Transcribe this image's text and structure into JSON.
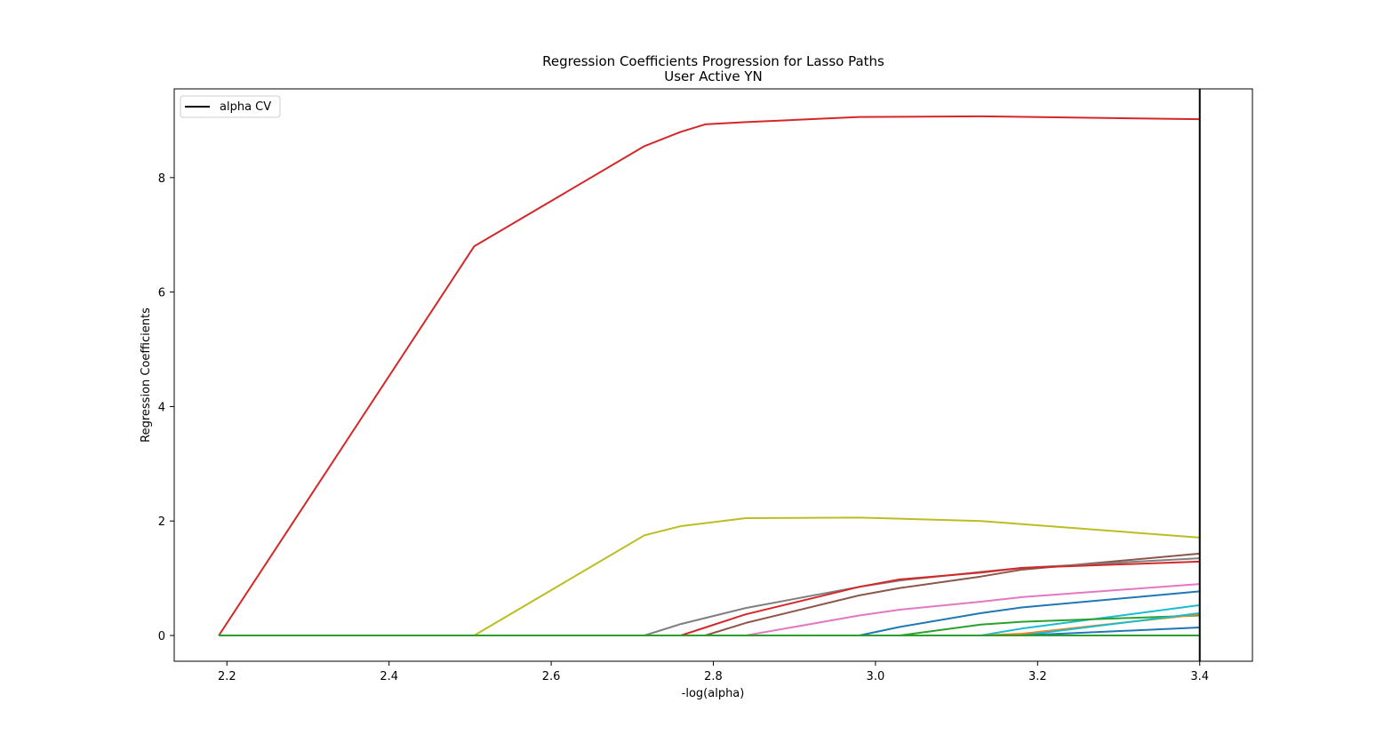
{
  "chart_data": {
    "type": "line",
    "title": "Regression Coefficients Progression for Lasso Paths",
    "subtitle": "User Active YN",
    "xlabel": "-log(alpha)",
    "ylabel": "Regression Coefficients",
    "xlim": [
      2.135,
      3.465
    ],
    "ylim": [
      -0.45,
      9.55
    ],
    "xticks": [
      2.2,
      2.4,
      2.6,
      2.8,
      3.0,
      3.2,
      3.4
    ],
    "yticks": [
      0,
      2,
      4,
      6,
      8
    ],
    "legend": {
      "placement": "upper-left",
      "entries": [
        {
          "label": "alpha CV",
          "color": "#000000"
        }
      ]
    },
    "vline": {
      "x": 3.4,
      "color": "#000000"
    },
    "grid": false,
    "series": [
      {
        "color": "#d62728",
        "points": [
          [
            2.19,
            0
          ],
          [
            2.505,
            6.8
          ],
          [
            2.715,
            8.55
          ],
          [
            2.76,
            8.8
          ],
          [
            2.79,
            8.93
          ],
          [
            2.84,
            8.97
          ],
          [
            2.98,
            9.06
          ],
          [
            3.13,
            9.07
          ],
          [
            3.4,
            9.02
          ]
        ]
      },
      {
        "color": "#bcbd22",
        "points": [
          [
            2.19,
            0
          ],
          [
            2.505,
            0
          ],
          [
            2.715,
            1.75
          ],
          [
            2.76,
            1.91
          ],
          [
            2.84,
            2.05
          ],
          [
            2.98,
            2.06
          ],
          [
            3.13,
            2.0
          ],
          [
            3.4,
            1.71
          ]
        ]
      },
      {
        "color": "#8c564b",
        "points": [
          [
            2.19,
            0
          ],
          [
            2.79,
            0
          ],
          [
            2.84,
            0.22
          ],
          [
            2.98,
            0.7
          ],
          [
            3.03,
            0.83
          ],
          [
            3.13,
            1.03
          ],
          [
            3.18,
            1.15
          ],
          [
            3.4,
            1.43
          ]
        ]
      },
      {
        "color": "#7f7f7f",
        "points": [
          [
            2.19,
            0
          ],
          [
            2.715,
            0
          ],
          [
            2.76,
            0.2
          ],
          [
            2.84,
            0.48
          ],
          [
            2.98,
            0.85
          ],
          [
            3.03,
            0.96
          ],
          [
            3.13,
            1.11
          ],
          [
            3.18,
            1.18
          ],
          [
            3.4,
            1.35
          ]
        ]
      },
      {
        "color": "#d62728",
        "points": [
          [
            2.19,
            0
          ],
          [
            2.76,
            0
          ],
          [
            2.84,
            0.37
          ],
          [
            2.98,
            0.85
          ],
          [
            3.03,
            0.98
          ],
          [
            3.13,
            1.1
          ],
          [
            3.18,
            1.18
          ],
          [
            3.4,
            1.29
          ]
        ]
      },
      {
        "color": "#e377c2",
        "points": [
          [
            2.19,
            0
          ],
          [
            2.84,
            0
          ],
          [
            2.98,
            0.35
          ],
          [
            3.03,
            0.45
          ],
          [
            3.13,
            0.59
          ],
          [
            3.18,
            0.67
          ],
          [
            3.4,
            0.9
          ]
        ]
      },
      {
        "color": "#1f77b4",
        "points": [
          [
            2.19,
            0
          ],
          [
            2.98,
            0
          ],
          [
            3.03,
            0.15
          ],
          [
            3.13,
            0.39
          ],
          [
            3.18,
            0.49
          ],
          [
            3.4,
            0.77
          ]
        ]
      },
      {
        "color": "#17becf",
        "points": [
          [
            2.19,
            0
          ],
          [
            3.13,
            0
          ],
          [
            3.18,
            0.12
          ],
          [
            3.4,
            0.53
          ]
        ]
      },
      {
        "color": "#2ca02c",
        "points": [
          [
            2.19,
            0
          ],
          [
            3.03,
            0
          ],
          [
            3.13,
            0.19
          ],
          [
            3.18,
            0.24
          ],
          [
            3.4,
            0.35
          ]
        ]
      },
      {
        "color": "#ff7f0e",
        "points": [
          [
            2.19,
            0
          ],
          [
            3.13,
            0
          ],
          [
            3.18,
            0.03
          ],
          [
            3.4,
            0.37
          ]
        ]
      },
      {
        "color": "#17becf",
        "points": [
          [
            2.19,
            0
          ],
          [
            3.18,
            0
          ],
          [
            3.4,
            0.39
          ]
        ]
      },
      {
        "color": "#1f77b4",
        "points": [
          [
            2.19,
            0
          ],
          [
            3.18,
            0
          ],
          [
            3.4,
            0.14
          ]
        ]
      },
      {
        "color": "#2ca02c",
        "points": [
          [
            2.19,
            0
          ],
          [
            3.4,
            0
          ]
        ]
      }
    ]
  }
}
